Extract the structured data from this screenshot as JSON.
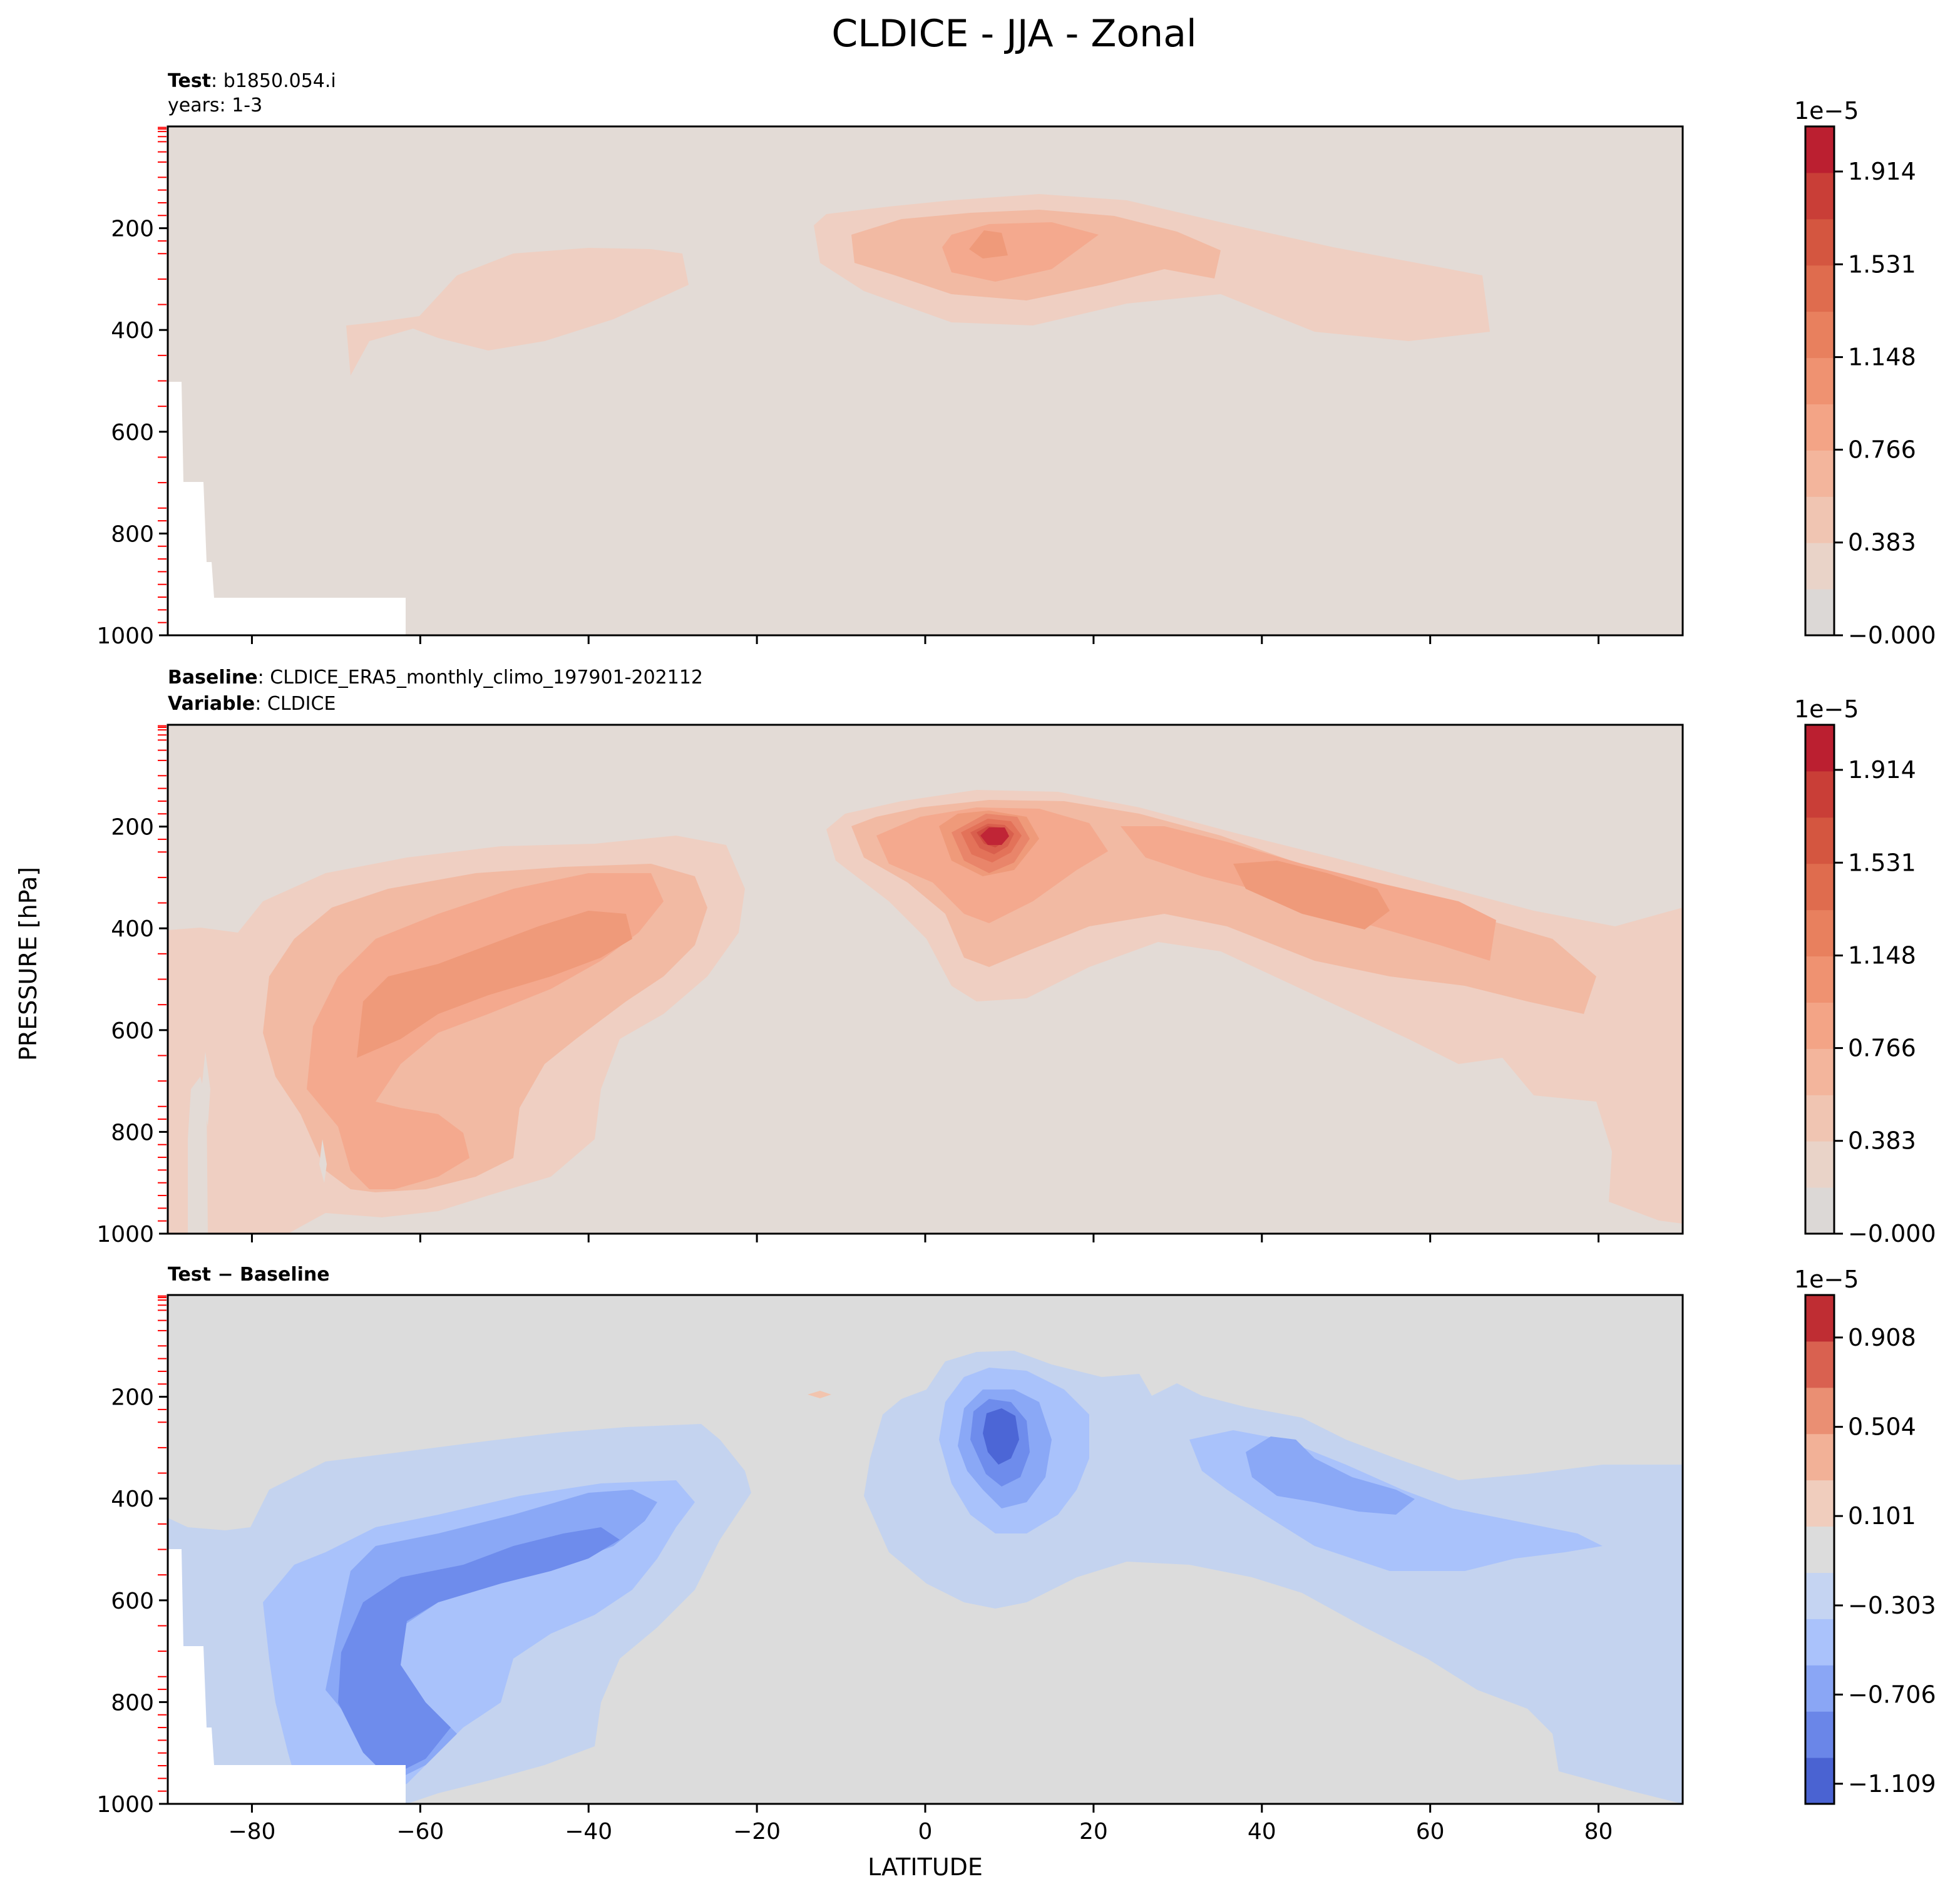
{
  "figure": {
    "title": "CLDICE - JJA - Zonal",
    "xlabel": "LATITUDE",
    "ylabel": "PRESSURE [hPa]"
  },
  "panels": [
    {
      "id": "test",
      "info": [
        {
          "bold": "Test",
          "sep": ": ",
          "text": "b1850.054.i"
        },
        {
          "bold": "",
          "sep": "",
          "text": "years: 1-3"
        }
      ],
      "colorbar": {
        "offset": "1e−5",
        "tick_labels": [
          "−0.000",
          "0.383",
          "0.766",
          "1.148",
          "1.531",
          "1.914"
        ]
      }
    },
    {
      "id": "baseline",
      "info": [
        {
          "bold": "Baseline",
          "sep": ": ",
          "text": "CLDICE_ERA5_monthly_climo_197901-202112"
        },
        {
          "bold": "Variable",
          "sep": ": ",
          "text": "CLDICE"
        }
      ],
      "colorbar": {
        "offset": "1e−5",
        "tick_labels": [
          "−0.000",
          "0.383",
          "0.766",
          "1.148",
          "1.531",
          "1.914"
        ]
      }
    },
    {
      "id": "diff",
      "info": [
        {
          "bold": "Test − Baseline",
          "sep": "",
          "text": ""
        }
      ],
      "colorbar": {
        "offset": "1e−5",
        "tick_labels": [
          "−1.109",
          "−0.706",
          "−0.303",
          "0.101",
          "0.504",
          "0.908"
        ]
      }
    }
  ],
  "chart_data": [
    {
      "type": "heatmap",
      "panel": "Test",
      "subtitle": "b1850.054.i, years: 1-3",
      "x_range": [
        -90,
        90
      ],
      "y_range": [
        1000,
        0
      ],
      "x_ticks": [
        -80,
        -60,
        -40,
        -20,
        0,
        20,
        40,
        60,
        80
      ],
      "y_ticks": [
        200,
        400,
        600,
        800,
        1000
      ],
      "units_scale": "1e-5",
      "colorbar_range": [
        0.0,
        2.1
      ],
      "colorbar_ticks": [
        0.0,
        0.383,
        0.766,
        1.148,
        1.531,
        1.914
      ],
      "features": [
        {
          "lat": 8,
          "pressure": 225,
          "value": 0.9,
          "desc": "tropical upper-level maximum"
        },
        {
          "lat": 45,
          "pressure": 330,
          "value": 0.35
        },
        {
          "lat": -45,
          "pressure": 330,
          "value": 0.35
        }
      ]
    },
    {
      "type": "heatmap",
      "panel": "Baseline",
      "subtitle": "CLDICE_ERA5_monthly_climo_197901-202112",
      "x_range": [
        -90,
        90
      ],
      "y_range": [
        1000,
        0
      ],
      "x_ticks": [
        -80,
        -60,
        -40,
        -20,
        0,
        20,
        40,
        60,
        80
      ],
      "y_ticks": [
        200,
        400,
        600,
        800,
        1000
      ],
      "units_scale": "1e-5",
      "colorbar_range": [
        0.0,
        2.1
      ],
      "colorbar_ticks": [
        0.0,
        0.383,
        0.766,
        1.148,
        1.531,
        1.914
      ],
      "features": [
        {
          "lat": 8,
          "pressure": 240,
          "value": 2.0,
          "desc": "tropical maximum"
        },
        {
          "lat": 50,
          "pressure": 350,
          "value": 0.85
        },
        {
          "lat": -50,
          "pressure": 500,
          "value": 0.85
        },
        {
          "lat": -60,
          "pressure": 850,
          "value": 0.7
        }
      ]
    },
    {
      "type": "heatmap",
      "panel": "Test − Baseline",
      "x_range": [
        -90,
        90
      ],
      "y_range": [
        1000,
        0
      ],
      "x_ticks": [
        -80,
        -60,
        -40,
        -20,
        0,
        20,
        40,
        60,
        80
      ],
      "y_ticks": [
        200,
        400,
        600,
        800,
        1000
      ],
      "units_scale": "1e-5",
      "colorbar_range": [
        -1.2,
        1.1
      ],
      "colorbar_ticks": [
        -1.109,
        -0.706,
        -0.303,
        0.101,
        0.504,
        0.908
      ],
      "features": [
        {
          "lat": 8,
          "pressure": 260,
          "value": -1.1,
          "desc": "tropical minimum"
        },
        {
          "lat": 45,
          "pressure": 360,
          "value": -0.6
        },
        {
          "lat": -55,
          "pressure": 600,
          "value": -0.7
        }
      ]
    }
  ]
}
